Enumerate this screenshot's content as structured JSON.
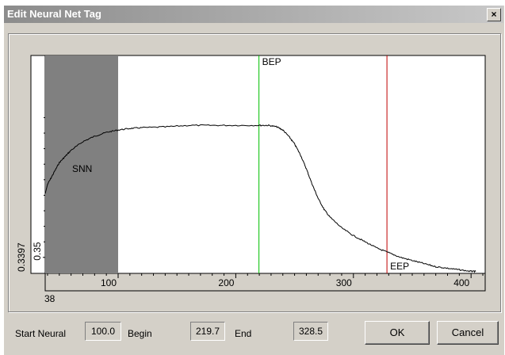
{
  "window": {
    "title": "Edit Neural Net Tag",
    "close_label": "×"
  },
  "chart_data": {
    "type": "line",
    "xlim": [
      38,
      412
    ],
    "ylim": [
      0.3397,
      0.48
    ],
    "x_ticks": [
      100,
      200,
      300,
      400
    ],
    "x_min_label": "38",
    "y_ticks": [
      "0.35"
    ],
    "y_min_label": "0.3397",
    "series": [
      {
        "x": [
          38,
          40,
          45,
          50,
          55,
          60,
          70,
          80,
          90,
          100,
          110,
          120,
          140,
          160,
          180,
          200,
          220,
          228,
          235,
          240,
          245,
          250,
          255,
          260,
          265,
          270,
          275,
          280,
          290,
          300,
          310,
          320,
          330,
          340,
          350,
          360,
          370,
          380,
          390,
          400,
          404
        ],
        "y": [
          0.391,
          0.397,
          0.404,
          0.411,
          0.415,
          0.419,
          0.4245,
          0.428,
          0.4305,
          0.432,
          0.433,
          0.4335,
          0.434,
          0.435,
          0.435,
          0.435,
          0.435,
          0.435,
          0.434,
          0.432,
          0.428,
          0.423,
          0.416,
          0.407,
          0.397,
          0.388,
          0.381,
          0.376,
          0.369,
          0.364,
          0.36,
          0.356,
          0.353,
          0.35,
          0.348,
          0.346,
          0.344,
          0.343,
          0.342,
          0.341,
          0.341
        ]
      }
    ],
    "shaded_region": {
      "label": "SNN",
      "x_start": 38,
      "x_end": 100
    },
    "markers": [
      {
        "label": "BEP",
        "x": 219.7,
        "color": "#00c000"
      },
      {
        "label": "EEP",
        "x": 328.5,
        "color": "#c00000"
      }
    ]
  },
  "footer": {
    "start_neural_label": "Start Neural",
    "start_neural_value": "100.0",
    "begin_label": "Begin",
    "begin_value": "219.7",
    "end_label": "End",
    "end_value": "328.5",
    "ok_label": "OK",
    "cancel_label": "Cancel"
  }
}
